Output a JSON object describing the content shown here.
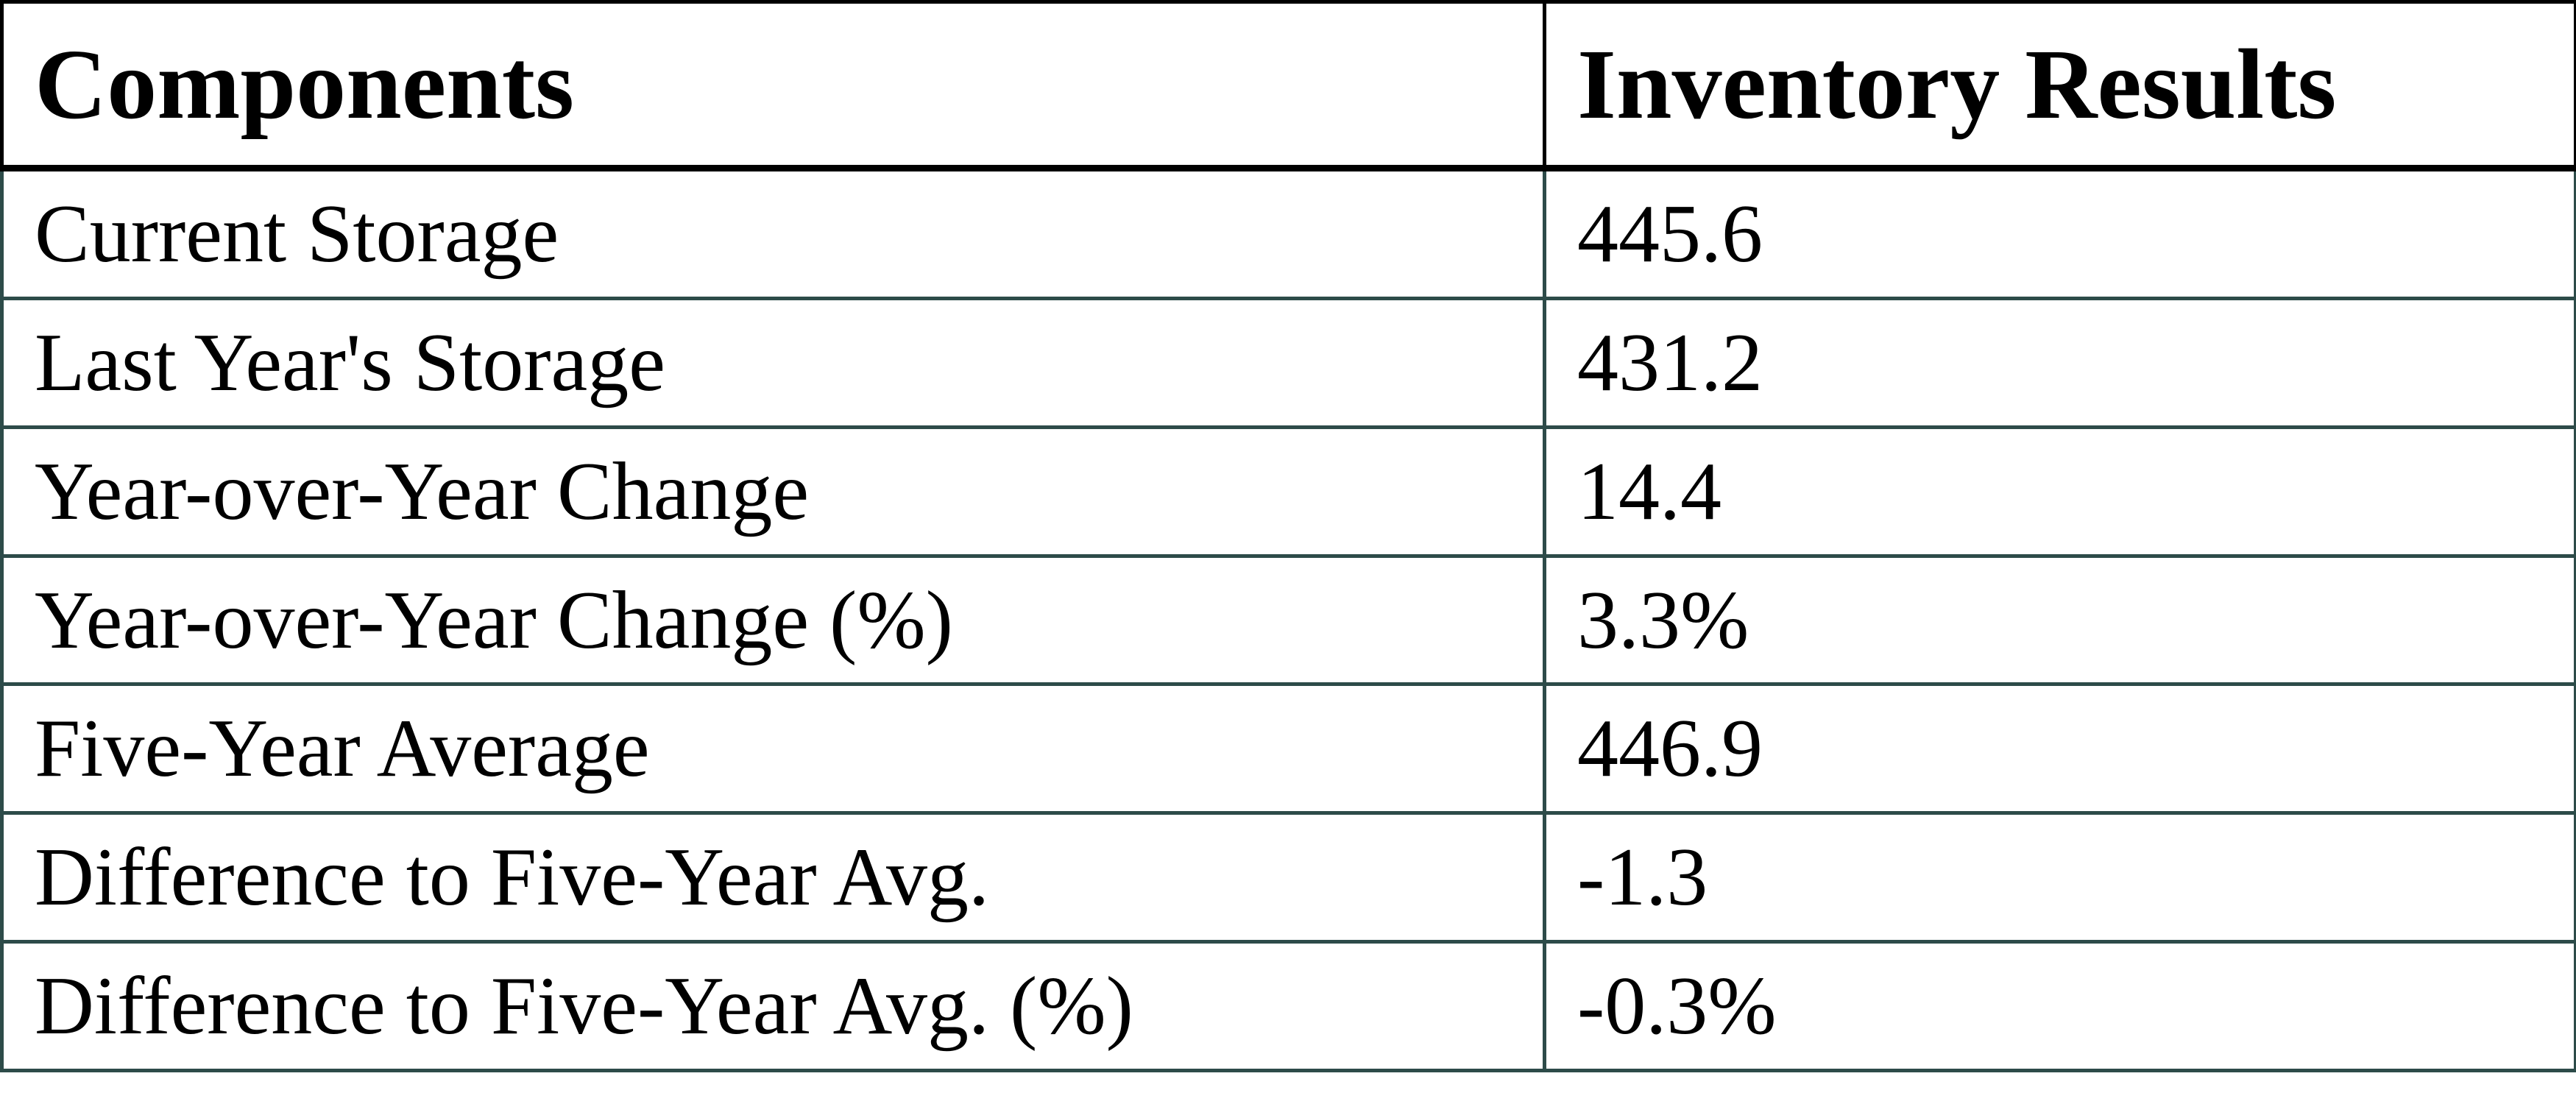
{
  "table": {
    "columns": [
      "Components",
      "Inventory Results"
    ],
    "rows": [
      {
        "label": "Current Storage",
        "value": "445.6"
      },
      {
        "label": "Last Year's Storage",
        "value": "431.2"
      },
      {
        "label": "Year-over-Year Change",
        "value": "14.4"
      },
      {
        "label": "Year-over-Year Change (%)",
        "value": "3.3%"
      },
      {
        "label": "Five-Year Average",
        "value": "446.9"
      },
      {
        "label": "Difference to Five-Year Avg.",
        "value": "-1.3"
      },
      {
        "label": "Difference to Five-Year Avg. (%)",
        "value": "-0.3%"
      }
    ]
  },
  "chart_data": {
    "type": "table",
    "title": "",
    "columns": [
      "Components",
      "Inventory Results"
    ],
    "records": [
      [
        "Current Storage",
        445.6
      ],
      [
        "Last Year's Storage",
        431.2
      ],
      [
        "Year-over-Year Change",
        14.4
      ],
      [
        "Year-over-Year Change (%)",
        "3.3%"
      ],
      [
        "Five-Year Average",
        446.9
      ],
      [
        "Difference to Five-Year Avg.",
        -1.3
      ],
      [
        "Difference to Five-Year Avg. (%)",
        "-0.3%"
      ]
    ]
  },
  "colors": {
    "header_border": "#000000",
    "body_border": "#2d4b49",
    "text": "#000000",
    "background": "#ffffff"
  }
}
